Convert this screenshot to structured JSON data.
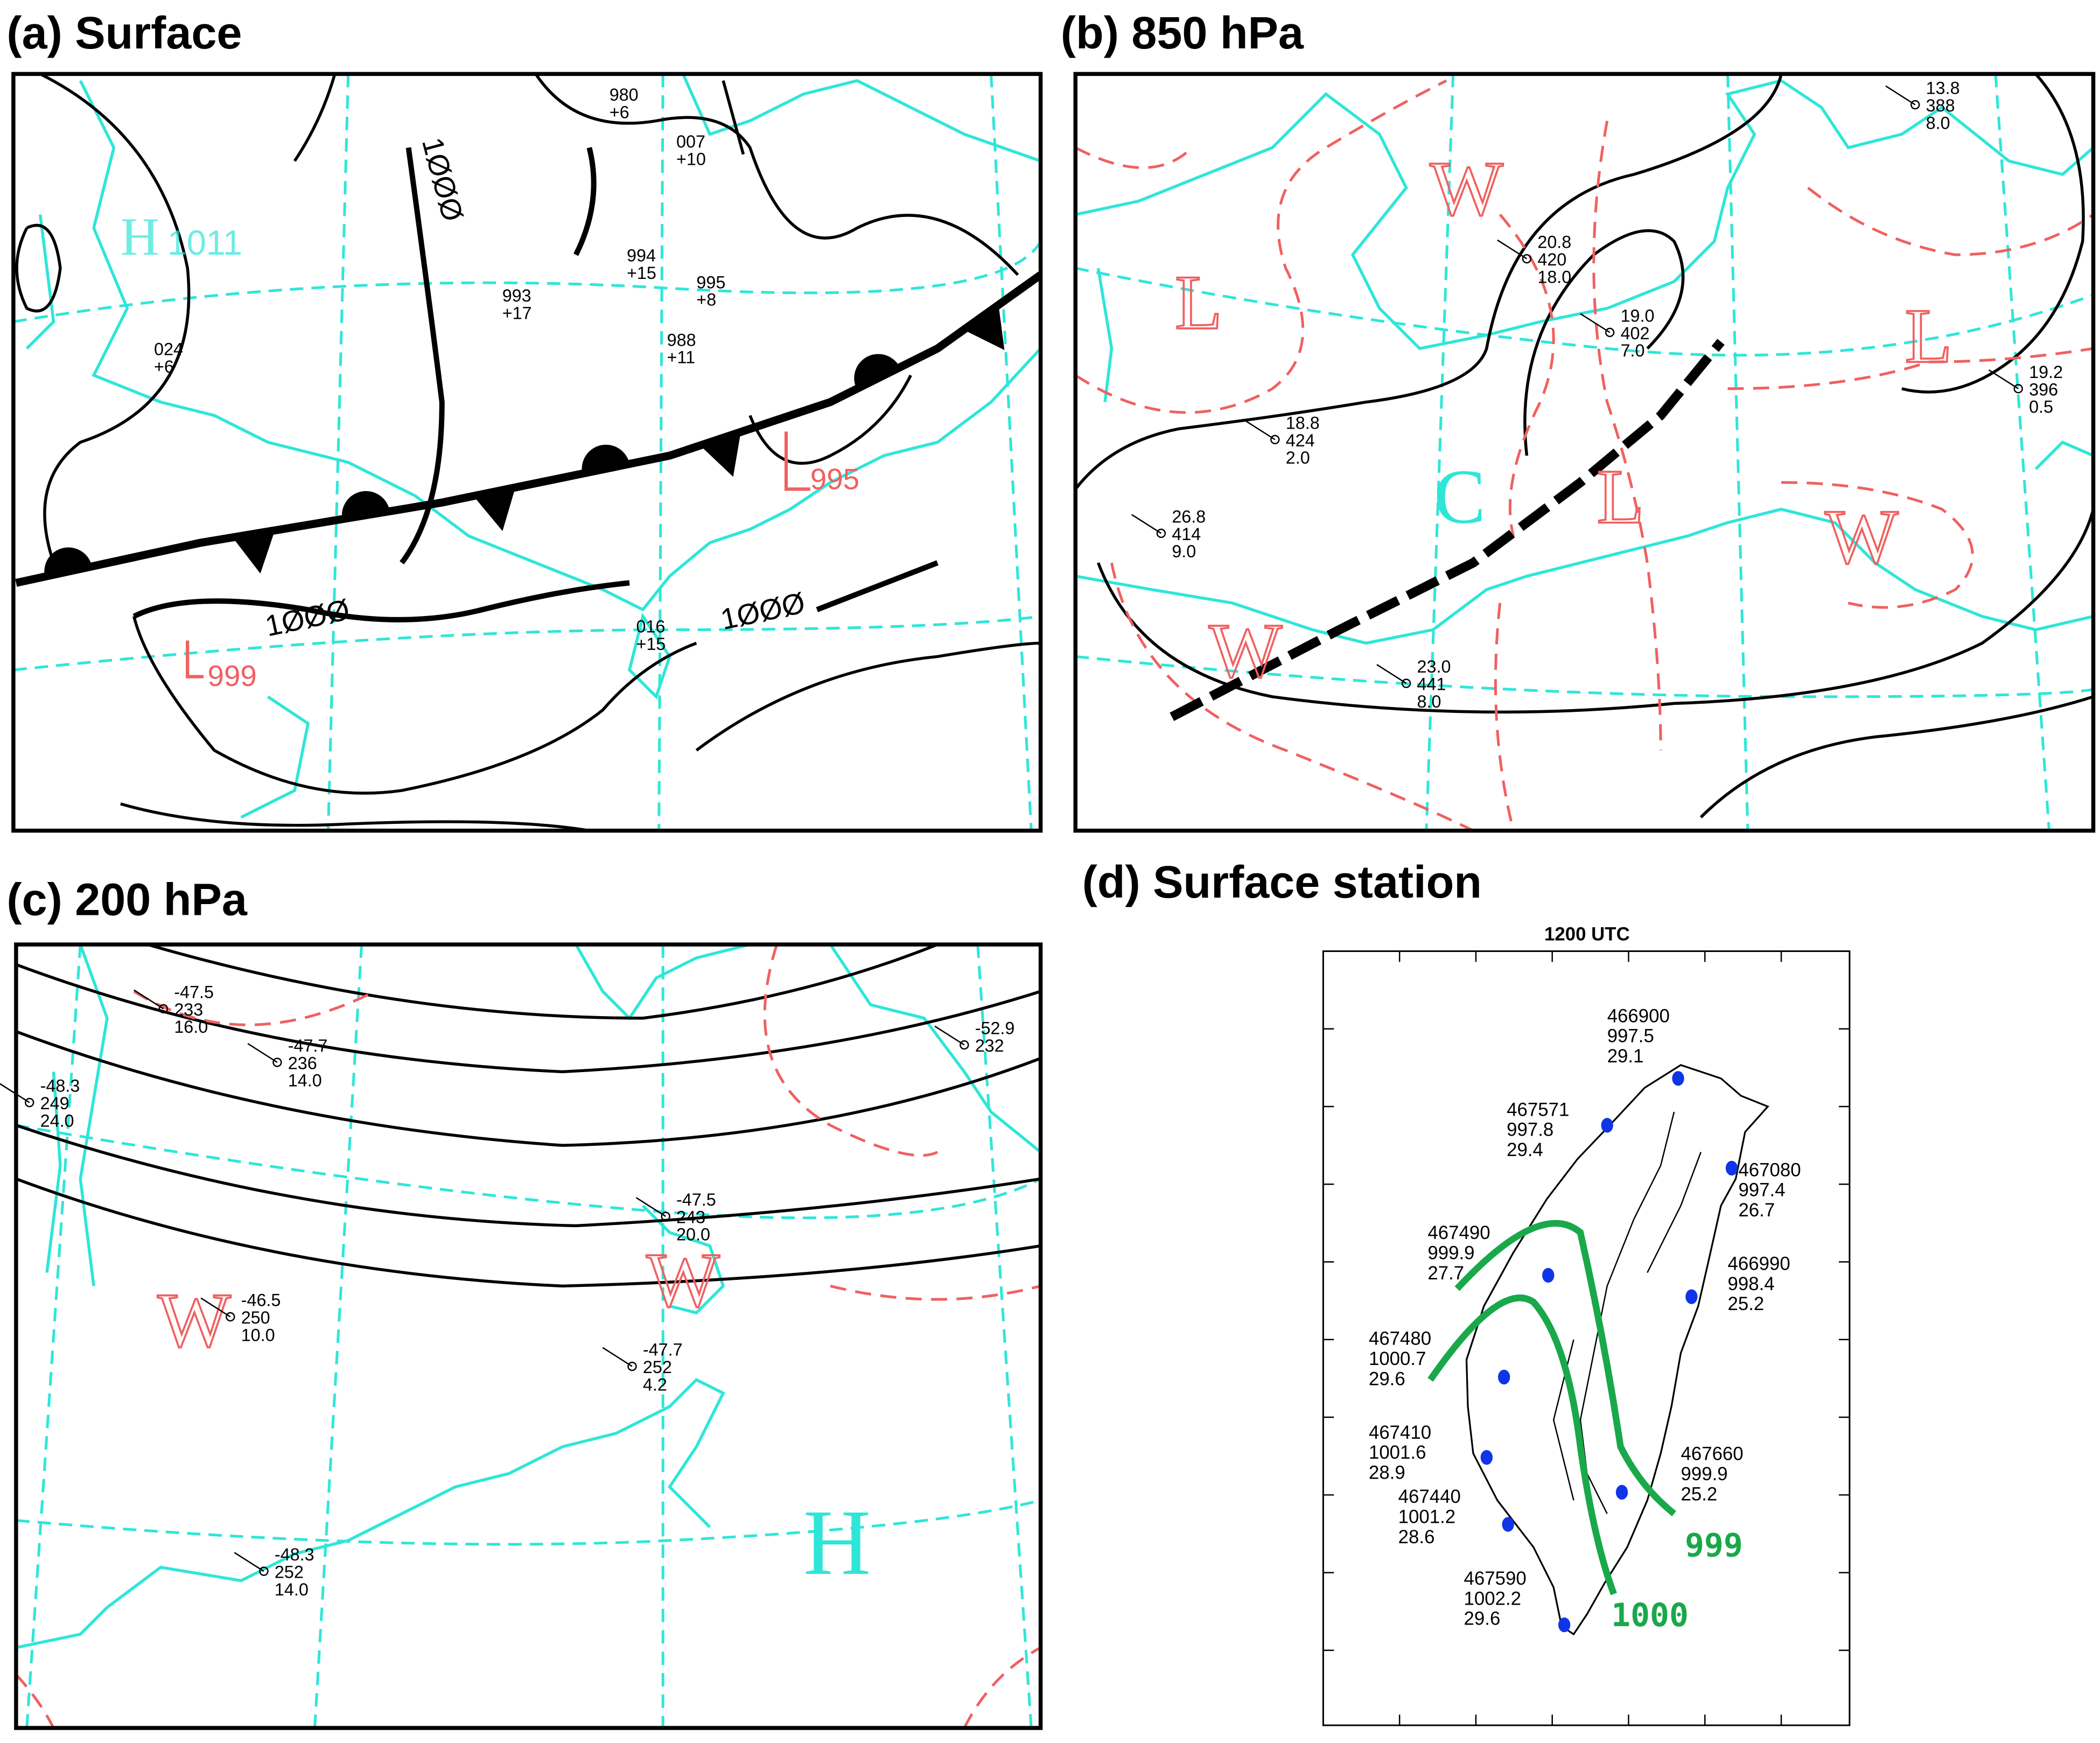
{
  "panels": [
    {
      "title": "(a) Surface",
      "labels": [
        "H",
        "1011",
        "995",
        "999",
        "1ØØØ",
        "1ØØØ",
        "1ØØØ"
      ],
      "stations": [
        [
          "980",
          "+6"
        ],
        [
          "007",
          "+10"
        ],
        [
          "995",
          "+8"
        ],
        [
          "988",
          "+11"
        ],
        [
          "994",
          "+15"
        ],
        [
          "993",
          "+17"
        ],
        [
          "016",
          "+15"
        ],
        [
          "024",
          "+6"
        ]
      ]
    },
    {
      "title": "(b) 850 hPa",
      "labels": [
        "W",
        "L",
        "L",
        "L",
        "C",
        "W",
        "W"
      ],
      "stations": [
        [
          "20.8",
          "420",
          "18.0"
        ],
        [
          "19.0",
          "402",
          "7.0"
        ],
        [
          "23.0",
          "441",
          "8.0"
        ],
        [
          "13.8",
          "388",
          "8.0"
        ],
        [
          "19.2",
          "396",
          "0.5"
        ],
        [
          "18.8",
          "424",
          "2.0"
        ],
        [
          "26.8",
          "414",
          "9.0"
        ]
      ]
    },
    {
      "title": "(c) 200 hPa",
      "labels": [
        "W",
        "W",
        "H"
      ],
      "stations": [
        [
          "-47.5",
          "233",
          "16.0"
        ],
        [
          "-48.3",
          "249",
          "24.0"
        ],
        [
          "-47.7",
          "236",
          "14.0"
        ],
        [
          "-47.5",
          "243",
          "20.0"
        ],
        [
          "-46.5",
          "250",
          "10.0"
        ],
        [
          "-48.3",
          "252",
          "14.0"
        ],
        [
          "-52.9",
          "232",
          ""
        ],
        [
          "-47.7",
          "252",
          "4.2"
        ]
      ]
    },
    {
      "title": "(d) Surface station",
      "subtitle": "1200 UTC",
      "stations": [
        [
          "466900",
          "997.5",
          "29.1"
        ],
        [
          "467571",
          "997.8",
          "29.4"
        ],
        [
          "467080",
          "997.4",
          "26.7"
        ],
        [
          "467490",
          "999.9",
          "27.7"
        ],
        [
          "466990",
          "998.4",
          "25.2"
        ],
        [
          "467480",
          "1000.7",
          "29.6"
        ],
        [
          "467660",
          "999.9",
          "25.2"
        ],
        [
          "467410",
          "1001.6",
          "28.9"
        ],
        [
          "467440",
          "1001.2",
          "28.6"
        ],
        [
          "467590",
          "1002.2",
          "29.6"
        ]
      ],
      "labels": [
        "999",
        "1000"
      ]
    }
  ]
}
